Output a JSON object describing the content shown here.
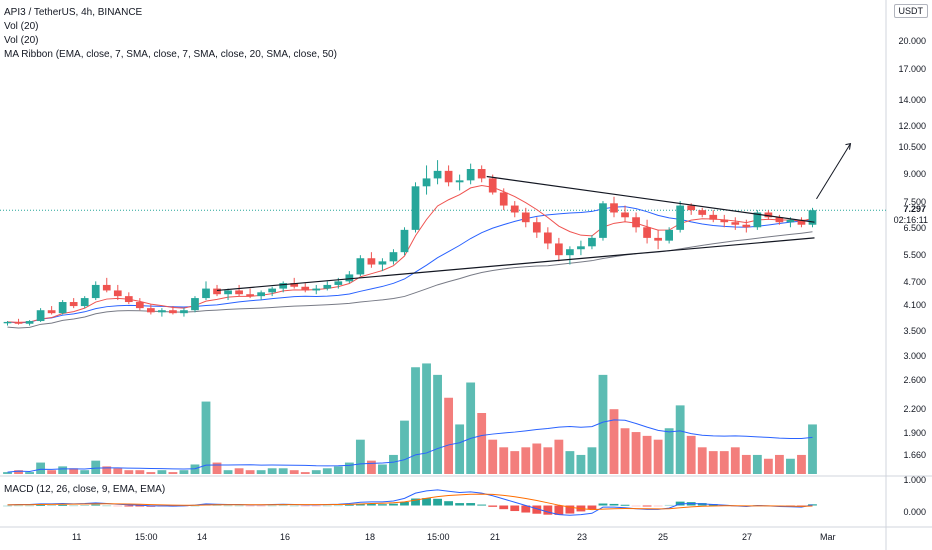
{
  "legend": {
    "title": "API3 / TetherUS, 4h, BINANCE",
    "vol1": "Vol (20)",
    "vol2": "Vol (20)",
    "ma_ribbon": "MA Ribbon (EMA, close, 7, SMA, close, 7, SMA, close, 20, SMA, close, 50)"
  },
  "macd_legend": "MACD (12, 26, close, 9, EMA, EMA)",
  "currency": "USDT",
  "price_axis": [
    "20.000",
    "17.000",
    "14.000",
    "12.000",
    "10.500",
    "9.000",
    "7.500",
    "6.500",
    "5.500",
    "4.700",
    "4.100",
    "3.500"
  ],
  "volume_axis": [
    "3.000",
    "2.600",
    "2.200",
    "1.900",
    "1.660",
    "1.000"
  ],
  "macd_axis": [
    "0.000"
  ],
  "current_price": "7.297",
  "countdown": "02:16:11",
  "x_axis": [
    "11",
    "15:00",
    "14",
    "16",
    "18",
    "15:00",
    "21",
    "23",
    "25",
    "27",
    "Mar"
  ],
  "colors": {
    "up": "#26a69a",
    "down": "#ef5350",
    "ma_fast": "#ef5350",
    "ma_mid": "#2962ff",
    "ma_slow": "#787b86",
    "macd_line": "#2962ff",
    "signal_line": "#ff6d00",
    "trendline": "#131722"
  },
  "chart_data": [
    {
      "type": "candlestick",
      "title": "API3 / TetherUS, 4h, BINANCE",
      "candles_ohlc": [
        [
          3.75,
          3.8,
          3.7,
          3.78
        ],
        [
          3.78,
          3.85,
          3.72,
          3.74
        ],
        [
          3.74,
          3.82,
          3.7,
          3.8
        ],
        [
          3.8,
          4.1,
          3.78,
          4.05
        ],
        [
          4.05,
          4.15,
          3.95,
          3.98
        ],
        [
          3.98,
          4.3,
          3.95,
          4.25
        ],
        [
          4.25,
          4.35,
          4.1,
          4.15
        ],
        [
          4.15,
          4.4,
          4.1,
          4.35
        ],
        [
          4.35,
          4.8,
          4.3,
          4.7
        ],
        [
          4.7,
          4.9,
          4.5,
          4.55
        ],
        [
          4.55,
          4.7,
          4.3,
          4.4
        ],
        [
          4.4,
          4.5,
          4.2,
          4.25
        ],
        [
          4.25,
          4.35,
          4.05,
          4.1
        ],
        [
          4.1,
          4.2,
          3.95,
          4.0
        ],
        [
          4.0,
          4.1,
          3.9,
          4.05
        ],
        [
          4.05,
          4.15,
          3.95,
          3.98
        ],
        [
          3.98,
          4.1,
          3.9,
          4.05
        ],
        [
          4.05,
          4.4,
          4.0,
          4.35
        ],
        [
          4.35,
          4.8,
          4.3,
          4.6
        ],
        [
          4.6,
          4.7,
          4.4,
          4.45
        ],
        [
          4.45,
          4.6,
          4.3,
          4.55
        ],
        [
          4.55,
          4.7,
          4.4,
          4.45
        ],
        [
          4.45,
          4.6,
          4.35,
          4.4
        ],
        [
          4.4,
          4.55,
          4.3,
          4.5
        ],
        [
          4.5,
          4.65,
          4.4,
          4.6
        ],
        [
          4.6,
          4.8,
          4.5,
          4.75
        ],
        [
          4.75,
          4.9,
          4.6,
          4.65
        ],
        [
          4.65,
          4.75,
          4.5,
          4.55
        ],
        [
          4.55,
          4.7,
          4.45,
          4.6
        ],
        [
          4.6,
          4.8,
          4.55,
          4.7
        ],
        [
          4.7,
          4.9,
          4.6,
          4.8
        ],
        [
          4.8,
          5.1,
          4.75,
          5.0
        ],
        [
          5.0,
          5.6,
          4.95,
          5.5
        ],
        [
          5.5,
          5.7,
          5.2,
          5.3
        ],
        [
          5.3,
          5.5,
          5.1,
          5.4
        ],
        [
          5.4,
          5.8,
          5.3,
          5.7
        ],
        [
          5.7,
          6.6,
          5.6,
          6.5
        ],
        [
          6.5,
          8.6,
          6.4,
          8.4
        ],
        [
          8.4,
          9.5,
          8.0,
          8.8
        ],
        [
          8.8,
          9.8,
          8.5,
          9.2
        ],
        [
          9.2,
          9.5,
          8.4,
          8.6
        ],
        [
          8.6,
          9.0,
          8.2,
          8.7
        ],
        [
          8.7,
          9.6,
          8.5,
          9.3
        ],
        [
          9.3,
          9.5,
          8.6,
          8.8
        ],
        [
          8.8,
          9.0,
          8.0,
          8.1
        ],
        [
          8.1,
          8.3,
          7.3,
          7.5
        ],
        [
          7.5,
          7.7,
          7.0,
          7.2
        ],
        [
          7.2,
          7.4,
          6.6,
          6.8
        ],
        [
          6.8,
          7.0,
          6.2,
          6.4
        ],
        [
          6.4,
          6.6,
          5.8,
          6.0
        ],
        [
          6.0,
          6.2,
          5.4,
          5.6
        ],
        [
          5.6,
          5.9,
          5.3,
          5.8
        ],
        [
          5.8,
          6.1,
          5.6,
          5.9
        ],
        [
          5.9,
          6.3,
          5.8,
          6.2
        ],
        [
          6.2,
          7.7,
          6.1,
          7.6
        ],
        [
          7.6,
          7.9,
          7.0,
          7.2
        ],
        [
          7.2,
          7.5,
          6.8,
          7.0
        ],
        [
          7.0,
          7.2,
          6.4,
          6.6
        ],
        [
          6.6,
          6.9,
          6.0,
          6.2
        ],
        [
          6.2,
          6.5,
          5.8,
          6.1
        ],
        [
          6.1,
          6.6,
          6.0,
          6.5
        ],
        [
          6.5,
          7.7,
          6.4,
          7.5
        ],
        [
          7.5,
          7.6,
          7.1,
          7.3
        ],
        [
          7.3,
          7.4,
          7.0,
          7.1
        ],
        [
          7.1,
          7.3,
          6.8,
          6.9
        ],
        [
          6.9,
          7.1,
          6.6,
          6.8
        ],
        [
          6.8,
          7.0,
          6.5,
          6.7
        ],
        [
          6.7,
          6.9,
          6.4,
          6.6
        ],
        [
          6.6,
          7.3,
          6.5,
          7.2
        ],
        [
          7.2,
          7.3,
          6.9,
          7.0
        ],
        [
          7.0,
          7.1,
          6.7,
          6.8
        ],
        [
          6.8,
          7.0,
          6.6,
          6.9
        ],
        [
          6.9,
          7.0,
          6.6,
          6.7
        ],
        [
          6.7,
          7.4,
          6.6,
          7.297
        ]
      ],
      "price_range": [
        3.3,
        24
      ],
      "scale": "log"
    },
    {
      "type": "bar",
      "title": "Vol (20)",
      "values": [
        0.05,
        0.1,
        0.05,
        0.3,
        0.1,
        0.2,
        0.15,
        0.1,
        0.35,
        0.2,
        0.15,
        0.1,
        0.1,
        0.05,
        0.1,
        0.05,
        0.1,
        0.25,
        1.9,
        0.3,
        0.1,
        0.15,
        0.1,
        0.1,
        0.15,
        0.15,
        0.1,
        0.05,
        0.1,
        0.15,
        0.2,
        0.3,
        0.9,
        0.35,
        0.25,
        0.5,
        1.4,
        2.8,
        2.9,
        2.6,
        2.0,
        1.3,
        2.4,
        1.6,
        0.9,
        0.7,
        0.6,
        0.7,
        0.8,
        0.7,
        0.9,
        0.6,
        0.5,
        0.7,
        2.6,
        1.7,
        1.2,
        1.1,
        1.0,
        0.9,
        1.2,
        1.8,
        1.0,
        0.7,
        0.6,
        0.6,
        0.7,
        0.5,
        0.5,
        0.4,
        0.5,
        0.4,
        0.5,
        1.3
      ],
      "ylim": [
        0,
        3.2
      ]
    },
    {
      "type": "bar",
      "title": "MACD (12, 26, close, 9, EMA, EMA)",
      "values": [
        0.02,
        0.03,
        0.03,
        0.05,
        0.05,
        0.06,
        0.05,
        0.06,
        0.08,
        0.06,
        0.04,
        0.02,
        0.01,
        -0.01,
        -0.01,
        -0.02,
        -0.01,
        0.01,
        0.05,
        0.04,
        0.03,
        0.03,
        0.02,
        0.02,
        0.03,
        0.04,
        0.03,
        0.02,
        0.02,
        0.03,
        0.04,
        0.06,
        0.1,
        0.11,
        0.11,
        0.14,
        0.22,
        0.38,
        0.45,
        0.48,
        0.44,
        0.4,
        0.42,
        0.38,
        0.3,
        0.2,
        0.1,
        0.0,
        -0.1,
        -0.2,
        -0.28,
        -0.3,
        -0.28,
        -0.24,
        -0.05,
        -0.05,
        -0.07,
        -0.1,
        -0.12,
        -0.12,
        -0.08,
        0.05,
        0.06,
        0.05,
        0.03,
        0.01,
        -0.01,
        -0.03,
        0.0,
        -0.01,
        -0.03,
        -0.04,
        -0.05,
        0.02
      ],
      "ylim": [
        -0.6,
        0.6
      ]
    }
  ]
}
